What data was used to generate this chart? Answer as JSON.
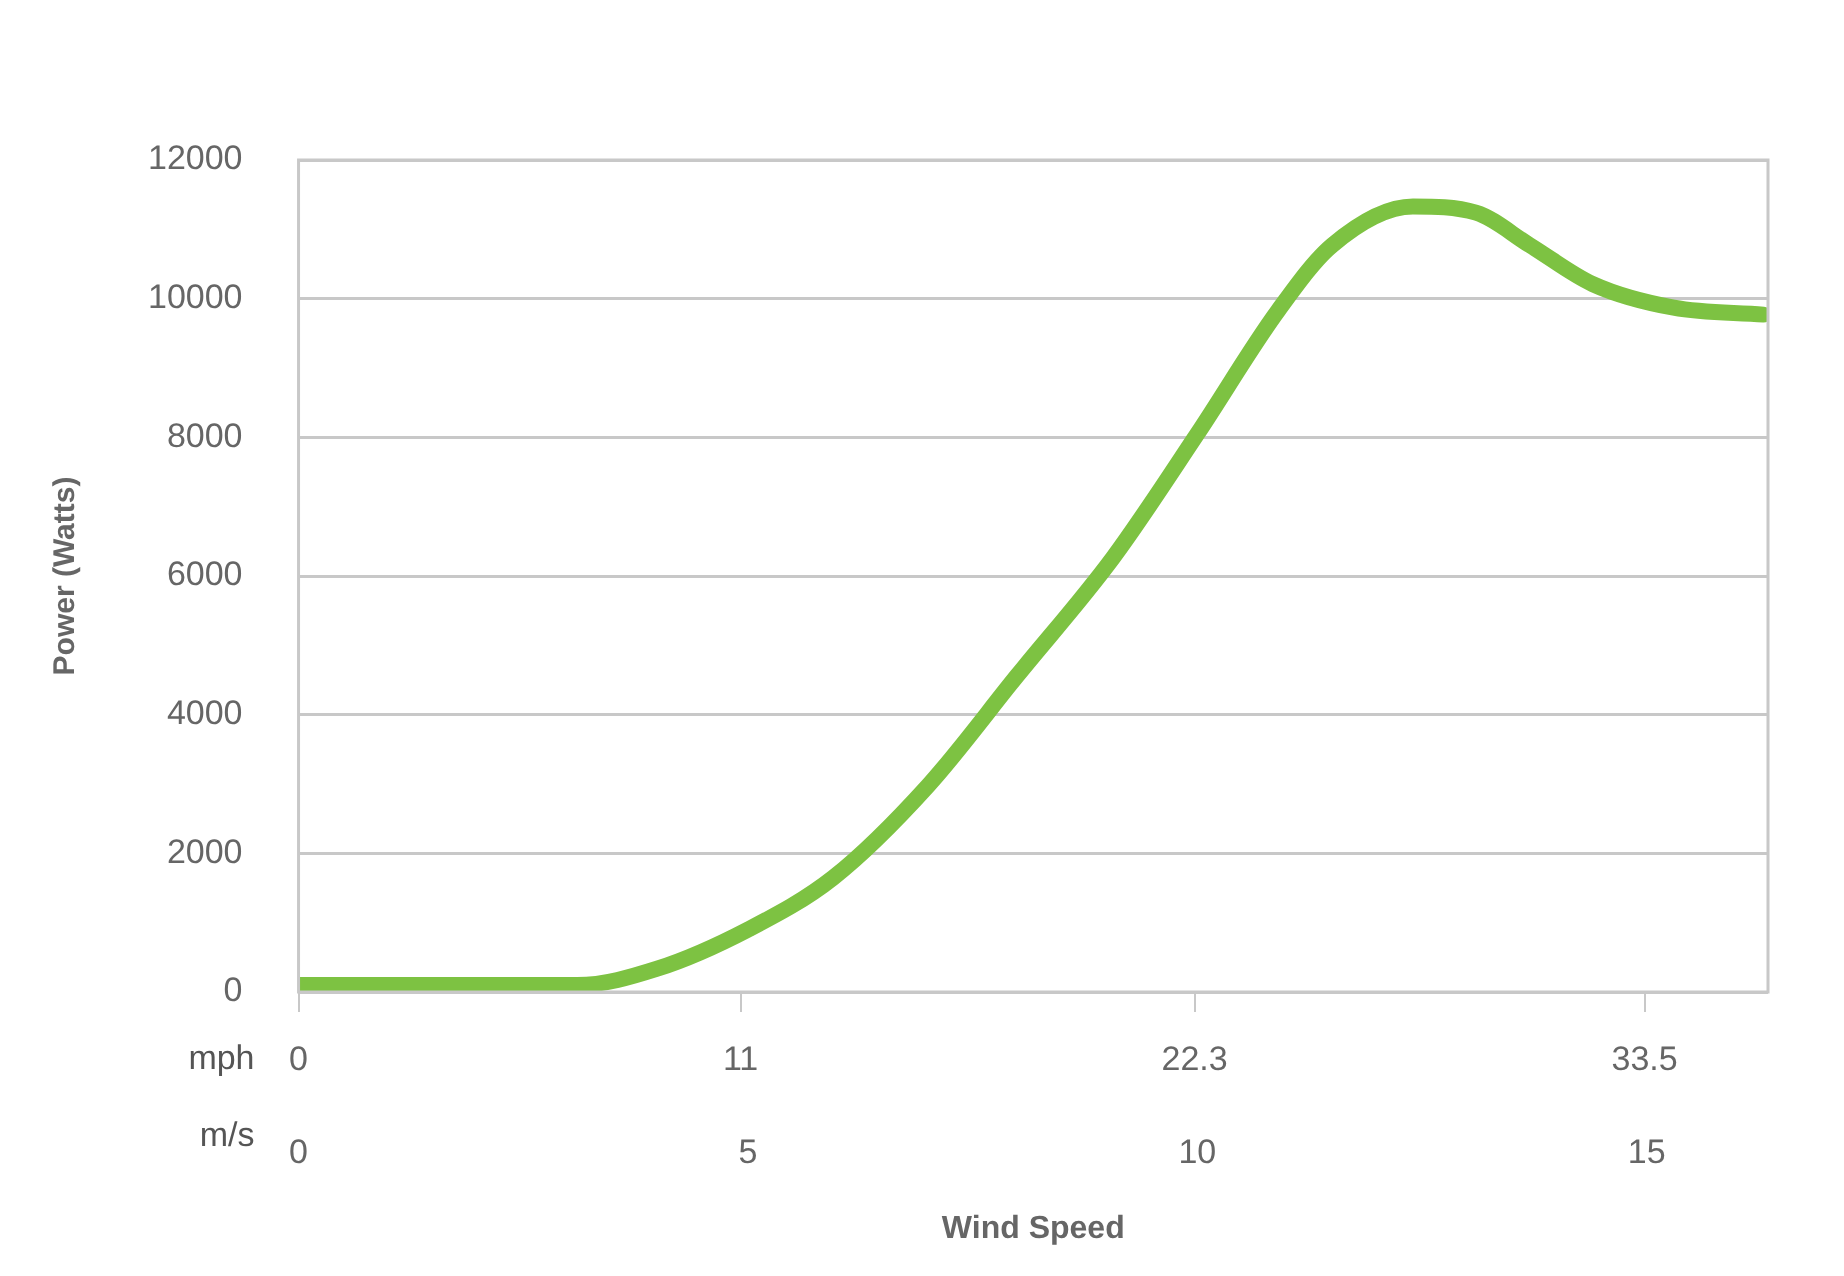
{
  "chart_data": {
    "type": "line",
    "xlabel": "Wind Speed",
    "ylabel": "Power (Watts)",
    "annotations": [
      "mph",
      "m/s"
    ],
    "x": [
      0,
      1,
      2,
      3.1,
      4,
      5,
      5.95,
      7,
      8,
      9.06,
      10,
      10.9,
      11.5,
      12.4,
      13.1,
      13.7,
      14.4,
      15.3,
      16.3
    ],
    "series": [
      {
        "color": "#7dc242",
        "values": [
          100,
          100,
          100,
          100,
          340,
          900,
          1650,
          2970,
          4570,
          6260,
          8050,
          9830,
          10770,
          11330,
          11240,
          10770,
          10210,
          9870,
          9770
        ]
      }
    ],
    "xlim": [
      0,
      16.35
    ],
    "xticks": [
      0,
      5,
      10,
      15
    ],
    "x2lim": [
      0,
      36.57
    ],
    "x2ticks": [
      0,
      11,
      22.3,
      33.5
    ],
    "ylim": [
      0,
      12000
    ],
    "yticks": [
      0,
      2000,
      4000,
      6000,
      8000,
      10000,
      12000
    ],
    "grid": "y",
    "legend": false,
    "marker": "none",
    "line_style": "solid"
  }
}
